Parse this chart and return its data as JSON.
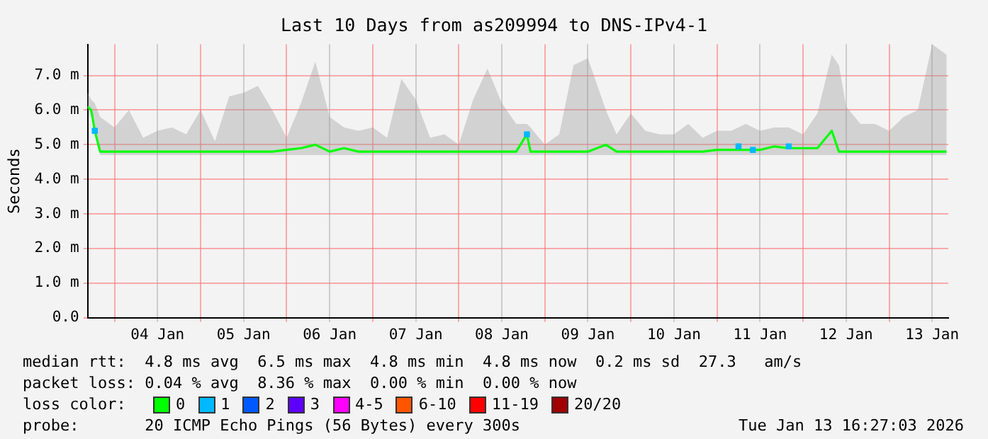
{
  "chart_data": {
    "type": "line",
    "title": "Last 10 Days from as209994 to DNS-IPv4-1",
    "ylabel": "Seconds",
    "legend_title": "loss color:",
    "legend": "bottom",
    "grid": true,
    "marker": "none",
    "x": [
      "2026-01-03T16:30",
      "2026-01-03T17:30",
      "2026-01-03T18:30",
      "2026-01-03T20:00",
      "2026-01-04T00:00",
      "2026-01-04T04:00",
      "2026-01-04T08:00",
      "2026-01-04T12:00",
      "2026-01-04T16:00",
      "2026-01-04T20:00",
      "2026-01-05T00:00",
      "2026-01-05T04:00",
      "2026-01-05T08:00",
      "2026-01-05T12:00",
      "2026-01-05T16:00",
      "2026-01-05T20:00",
      "2026-01-06T00:00",
      "2026-01-06T04:00",
      "2026-01-06T08:00",
      "2026-01-06T12:00",
      "2026-01-06T16:00",
      "2026-01-06T20:00",
      "2026-01-07T00:00",
      "2026-01-07T04:00",
      "2026-01-07T08:00",
      "2026-01-07T12:00",
      "2026-01-07T16:00",
      "2026-01-07T20:00",
      "2026-01-08T00:00",
      "2026-01-08T04:00",
      "2026-01-08T08:00",
      "2026-01-08T12:00",
      "2026-01-08T16:00",
      "2026-01-08T19:00",
      "2026-01-08T20:00",
      "2026-01-09T00:00",
      "2026-01-09T04:00",
      "2026-01-09T08:00",
      "2026-01-09T12:00",
      "2026-01-09T17:00",
      "2026-01-09T20:00",
      "2026-01-10T00:00",
      "2026-01-10T04:00",
      "2026-01-10T08:00",
      "2026-01-10T12:00",
      "2026-01-10T16:00",
      "2026-01-10T20:00",
      "2026-01-11T00:00",
      "2026-01-11T04:00",
      "2026-01-11T08:00",
      "2026-01-11T12:00",
      "2026-01-11T16:00",
      "2026-01-11T20:00",
      "2026-01-12T00:00",
      "2026-01-12T04:00",
      "2026-01-12T08:00",
      "2026-01-12T10:00",
      "2026-01-12T12:00",
      "2026-01-12T16:00",
      "2026-01-12T20:00",
      "2026-01-13T00:00",
      "2026-01-13T04:00",
      "2026-01-13T08:00",
      "2026-01-13T12:00",
      "2026-01-13T16:00"
    ],
    "series": [
      {
        "name": "0",
        "color": "#00ff00",
        "values": [
          6.1,
          6.0,
          5.4,
          4.8,
          4.8,
          4.8,
          4.8,
          4.8,
          4.8,
          4.8,
          4.8,
          4.8,
          4.8,
          4.8,
          4.8,
          4.8,
          4.85,
          4.9,
          5.0,
          4.8,
          4.9,
          4.8,
          4.8,
          4.8,
          4.8,
          4.8,
          4.8,
          4.8,
          4.8,
          4.8,
          4.8,
          4.8,
          4.8,
          5.3,
          4.8,
          4.8,
          4.8,
          4.8,
          4.8,
          5.0,
          4.8,
          4.8,
          4.8,
          4.8,
          4.8,
          4.8,
          4.8,
          4.85,
          4.85,
          4.85,
          4.85,
          4.95,
          4.9,
          4.9,
          4.9,
          5.4,
          4.8,
          4.8,
          4.8,
          4.8,
          4.8,
          4.8,
          4.8,
          4.8,
          4.8
        ],
        "lower": [
          6.0,
          5.9,
          5.3,
          4.7,
          4.7,
          4.7,
          4.7,
          4.7,
          4.7,
          4.7,
          4.7,
          4.7,
          4.7,
          4.7,
          4.7,
          4.7,
          4.7,
          4.7,
          4.7,
          4.7,
          4.7,
          4.7,
          4.7,
          4.7,
          4.7,
          4.7,
          4.7,
          4.7,
          4.7,
          4.7,
          4.7,
          4.7,
          4.7,
          4.7,
          4.7,
          4.7,
          4.7,
          4.7,
          4.7,
          4.7,
          4.7,
          4.7,
          4.7,
          4.7,
          4.7,
          4.7,
          4.7,
          4.7,
          4.7,
          4.7,
          4.7,
          4.7,
          4.7,
          4.7,
          4.7,
          4.7,
          4.7,
          4.7,
          4.7,
          4.7,
          4.7,
          4.7,
          4.7,
          4.7,
          4.7
        ],
        "upper": [
          6.5,
          6.3,
          6.2,
          5.8,
          5.5,
          6.0,
          5.2,
          5.4,
          5.5,
          5.3,
          6.0,
          5.1,
          6.4,
          6.5,
          6.7,
          6.0,
          5.2,
          6.2,
          7.4,
          5.8,
          5.5,
          5.4,
          5.5,
          5.2,
          6.9,
          6.3,
          5.2,
          5.3,
          5.0,
          6.3,
          7.2,
          6.2,
          5.6,
          5.6,
          5.5,
          5.0,
          5.3,
          7.3,
          7.5,
          6.0,
          5.3,
          5.9,
          5.4,
          5.3,
          5.3,
          5.6,
          5.2,
          5.4,
          5.4,
          5.6,
          5.4,
          5.5,
          5.5,
          5.3,
          5.9,
          7.6,
          7.3,
          6.1,
          5.6,
          5.6,
          5.4,
          5.8,
          6.0,
          7.9,
          7.6
        ]
      },
      {
        "name": "1",
        "color": "#00b8ff",
        "type": "scatter",
        "marker": "square",
        "x": [
          "2026-01-03T18:30",
          "2026-01-08T19:00",
          "2026-01-11T06:00",
          "2026-01-11T10:00",
          "2026-01-11T20:00"
        ],
        "values": [
          5.4,
          5.3,
          4.95,
          4.85,
          4.95
        ]
      },
      {
        "name": "2",
        "color": "#0059ff",
        "values": [
          null,
          null,
          null,
          null,
          null,
          null,
          null,
          null,
          null,
          null,
          null,
          null,
          null,
          null,
          null,
          null,
          null,
          null,
          null,
          null,
          null,
          null,
          null,
          null,
          null,
          null,
          null,
          null,
          null,
          null,
          null,
          null,
          null,
          null,
          null,
          null,
          null,
          null,
          null,
          null,
          null,
          null,
          null,
          null,
          null,
          null,
          null,
          null,
          null,
          null,
          null,
          null,
          null,
          null,
          null,
          null,
          null,
          null,
          null,
          null,
          null,
          null,
          null,
          null,
          null
        ]
      },
      {
        "name": "3",
        "color": "#5e00ff",
        "values": [
          null,
          null,
          null,
          null,
          null,
          null,
          null,
          null,
          null,
          null,
          null,
          null,
          null,
          null,
          null,
          null,
          null,
          null,
          null,
          null,
          null,
          null,
          null,
          null,
          null,
          null,
          null,
          null,
          null,
          null,
          null,
          null,
          null,
          null,
          null,
          null,
          null,
          null,
          null,
          null,
          null,
          null,
          null,
          null,
          null,
          null,
          null,
          null,
          null,
          null,
          null,
          null,
          null,
          null,
          null,
          null,
          null,
          null,
          null,
          null,
          null,
          null,
          null,
          null,
          null
        ]
      },
      {
        "name": "4-5",
        "color": "#ff00ff",
        "values": [
          null,
          null,
          null,
          null,
          null,
          null,
          null,
          null,
          null,
          null,
          null,
          null,
          null,
          null,
          null,
          null,
          null,
          null,
          null,
          null,
          null,
          null,
          null,
          null,
          null,
          null,
          null,
          null,
          null,
          null,
          null,
          null,
          null,
          null,
          null,
          null,
          null,
          null,
          null,
          null,
          null,
          null,
          null,
          null,
          null,
          null,
          null,
          null,
          null,
          null,
          null,
          null,
          null,
          null,
          null,
          null,
          null,
          null,
          null,
          null,
          null,
          null,
          null,
          null,
          null
        ]
      },
      {
        "name": "6-10",
        "color": "#ff5500",
        "values": [
          null,
          null,
          null,
          null,
          null,
          null,
          null,
          null,
          null,
          null,
          null,
          null,
          null,
          null,
          null,
          null,
          null,
          null,
          null,
          null,
          null,
          null,
          null,
          null,
          null,
          null,
          null,
          null,
          null,
          null,
          null,
          null,
          null,
          null,
          null,
          null,
          null,
          null,
          null,
          null,
          null,
          null,
          null,
          null,
          null,
          null,
          null,
          null,
          null,
          null,
          null,
          null,
          null,
          null,
          null,
          null,
          null,
          null,
          null,
          null,
          null,
          null,
          null,
          null,
          null
        ]
      },
      {
        "name": "11-19",
        "color": "#ff0000",
        "values": [
          null,
          null,
          null,
          null,
          null,
          null,
          null,
          null,
          null,
          null,
          null,
          null,
          null,
          null,
          null,
          null,
          null,
          null,
          null,
          null,
          null,
          null,
          null,
          null,
          null,
          null,
          null,
          null,
          null,
          null,
          null,
          null,
          null,
          null,
          null,
          null,
          null,
          null,
          null,
          null,
          null,
          null,
          null,
          null,
          null,
          null,
          null,
          null,
          null,
          null,
          null,
          null,
          null,
          null,
          null,
          null,
          null,
          null,
          null,
          null,
          null,
          null,
          null,
          null,
          null
        ]
      },
      {
        "name": "20/20",
        "color": "#a10000",
        "values": [
          null,
          null,
          null,
          null,
          null,
          null,
          null,
          null,
          null,
          null,
          null,
          null,
          null,
          null,
          null,
          null,
          null,
          null,
          null,
          null,
          null,
          null,
          null,
          null,
          null,
          null,
          null,
          null,
          null,
          null,
          null,
          null,
          null,
          null,
          null,
          null,
          null,
          null,
          null,
          null,
          null,
          null,
          null,
          null,
          null,
          null,
          null,
          null,
          null,
          null,
          null,
          null,
          null,
          null,
          null,
          null,
          null,
          null,
          null,
          null,
          null,
          null,
          null,
          null,
          null
        ]
      }
    ],
    "xlim": [
      "2026-01-03T16:30",
      "2026-01-13T16:30"
    ],
    "xticks": [
      {
        "value": "2026-01-04T00:00",
        "label": null
      },
      {
        "value": "2026-01-04T12:00",
        "label": "04 Jan"
      },
      {
        "value": "2026-01-05T00:00",
        "label": null
      },
      {
        "value": "2026-01-05T12:00",
        "label": "05 Jan"
      },
      {
        "value": "2026-01-06T00:00",
        "label": null
      },
      {
        "value": "2026-01-06T12:00",
        "label": "06 Jan"
      },
      {
        "value": "2026-01-07T00:00",
        "label": null
      },
      {
        "value": "2026-01-07T12:00",
        "label": "07 Jan"
      },
      {
        "value": "2026-01-08T00:00",
        "label": null
      },
      {
        "value": "2026-01-08T12:00",
        "label": "08 Jan"
      },
      {
        "value": "2026-01-09T00:00",
        "label": null
      },
      {
        "value": "2026-01-09T12:00",
        "label": "09 Jan"
      },
      {
        "value": "2026-01-10T00:00",
        "label": null
      },
      {
        "value": "2026-01-10T12:00",
        "label": "10 Jan"
      },
      {
        "value": "2026-01-11T00:00",
        "label": null
      },
      {
        "value": "2026-01-11T12:00",
        "label": "11 Jan"
      },
      {
        "value": "2026-01-12T00:00",
        "label": null
      },
      {
        "value": "2026-01-12T12:00",
        "label": "12 Jan"
      },
      {
        "value": "2026-01-13T00:00",
        "label": null
      },
      {
        "value": "2026-01-13T12:00",
        "label": "13 Jan"
      }
    ],
    "ylim": [
      0,
      7.9
    ],
    "yticks": [
      {
        "value": 0,
        "label": "0.0"
      },
      {
        "value": 1,
        "label": "1.0 m"
      },
      {
        "value": 2,
        "label": "2.0 m"
      },
      {
        "value": 3,
        "label": "3.0 m"
      },
      {
        "value": 4,
        "label": "4.0 m"
      },
      {
        "value": 5,
        "label": "5.0 m"
      },
      {
        "value": 6,
        "label": "6.0 m"
      },
      {
        "value": 7,
        "label": "7.0 m"
      }
    ],
    "annotations": [
      "median rtt:  4.8 ms avg  6.5 ms max  4.8 ms min  4.8 ms now  0.2 ms sd  27.3   am/s",
      "packet loss: 0.04 % avg  8.36 % max  0.00 % min  0.00 % now",
      "probe:       20 ICMP Echo Pings (56 Bytes) every 300s",
      "Tue Jan 13 16:27:03 2026"
    ]
  }
}
